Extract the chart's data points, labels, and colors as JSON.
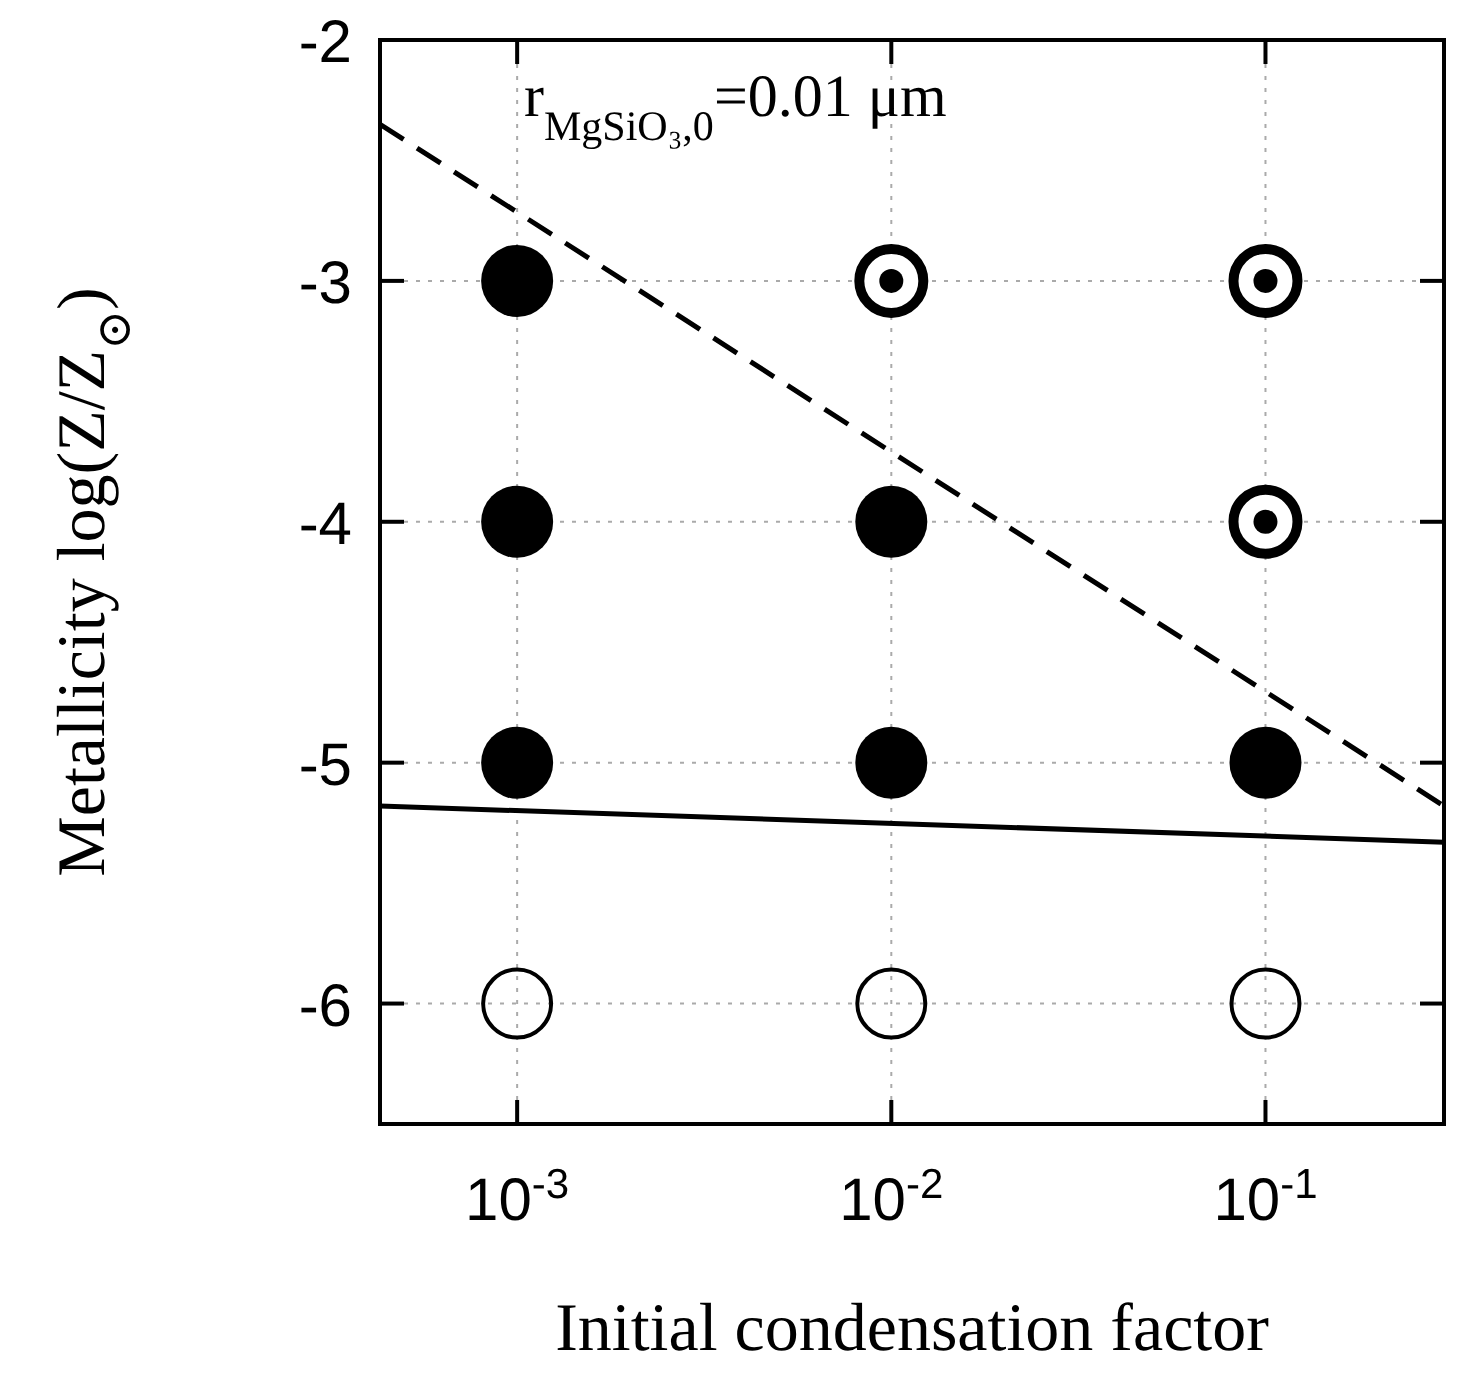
{
  "chart_data": {
    "type": "scatter",
    "xlabel": "Initial condensation factor",
    "ylabel": "Metallicity log(Z/Z$_{⊙}$)",
    "log": "x",
    "xlim": [
      0.00043,
      0.3
    ],
    "ylim": [
      -6.5,
      -2
    ],
    "xticks": [
      {
        "value": 0.001,
        "label": "10$^{-3}$"
      },
      {
        "value": 0.01,
        "label": "10$^{-2}$"
      },
      {
        "value": 0.1,
        "label": "10$^{-1}$"
      }
    ],
    "yticks": [
      -6,
      -5,
      -4,
      -3,
      -2
    ],
    "grid": true,
    "annotations": [
      "r$_{MgSiO₃,0}$=0.01 μm"
    ],
    "series": [
      {
        "marker": "circle",
        "color": "#000000",
        "x": [
          0.001,
          0.001,
          0.001,
          0.01,
          0.01,
          0.1
        ],
        "values": [
          -3,
          -4,
          -5,
          -4,
          -5,
          -5
        ]
      },
      {
        "marker": "circle",
        "color": "#000000",
        "x": [
          0.01,
          0.1,
          0.1
        ],
        "values": [
          -3,
          -3,
          -4
        ]
      },
      {
        "marker": "circle",
        "color": "#000000",
        "x": [
          0.001,
          0.01,
          0.1
        ],
        "values": [
          -6,
          -6,
          -6
        ]
      },
      {
        "type": "line",
        "line_style": "dashed",
        "color": "#000000",
        "x": [
          0.00043,
          0.3
        ],
        "values": [
          -2.35,
          -5.18
        ]
      },
      {
        "type": "line",
        "line_style": "solid",
        "color": "#000000",
        "x": [
          0.00043,
          0.3
        ],
        "values": [
          -5.18,
          -5.33
        ]
      }
    ]
  }
}
